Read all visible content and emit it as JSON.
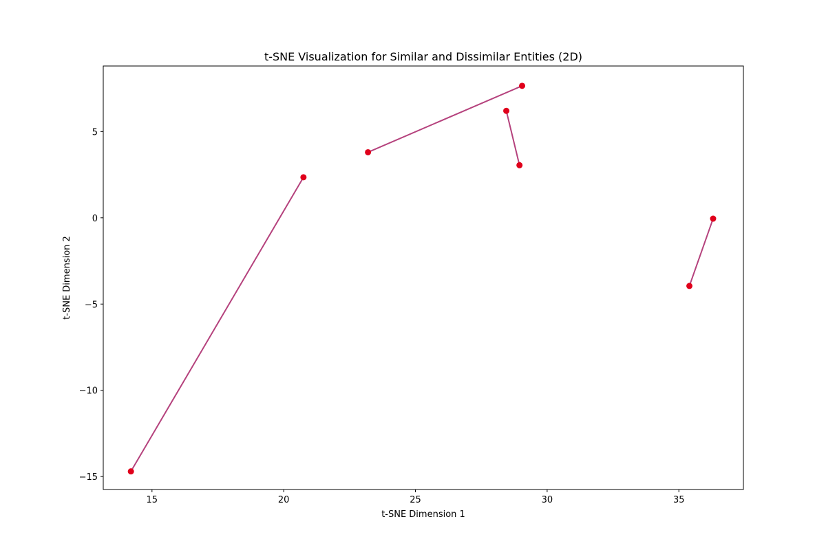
{
  "chart_data": {
    "type": "scatter",
    "title": "t-SNE Visualization for Similar and Dissimilar Entities (2D)",
    "xlabel": "t-SNE Dimension 1",
    "ylabel": "t-SNE Dimension 2",
    "xlim": [
      13.15,
      37.45
    ],
    "ylim": [
      -15.75,
      8.8
    ],
    "xticks": [
      15,
      20,
      25,
      30,
      35
    ],
    "yticks": [
      -15,
      -10,
      -5,
      0,
      5
    ],
    "xtick_labels": [
      "15",
      "20",
      "25",
      "30",
      "35"
    ],
    "ytick_labels": [
      "−15",
      "−10",
      "−5",
      "0",
      "5"
    ],
    "grid": false,
    "legend": "none",
    "point_color": "#e0001b",
    "line_color": "#b5427d",
    "pairs": [
      {
        "points": [
          {
            "x": 14.2,
            "y": -14.7
          },
          {
            "x": 20.75,
            "y": 2.35
          }
        ]
      },
      {
        "points": [
          {
            "x": 23.2,
            "y": 3.8
          },
          {
            "x": 29.05,
            "y": 7.65
          }
        ]
      },
      {
        "points": [
          {
            "x": 28.45,
            "y": 6.2
          },
          {
            "x": 28.95,
            "y": 3.05
          }
        ]
      },
      {
        "points": [
          {
            "x": 35.4,
            "y": -3.95
          },
          {
            "x": 36.3,
            "y": -0.05
          }
        ]
      }
    ]
  }
}
